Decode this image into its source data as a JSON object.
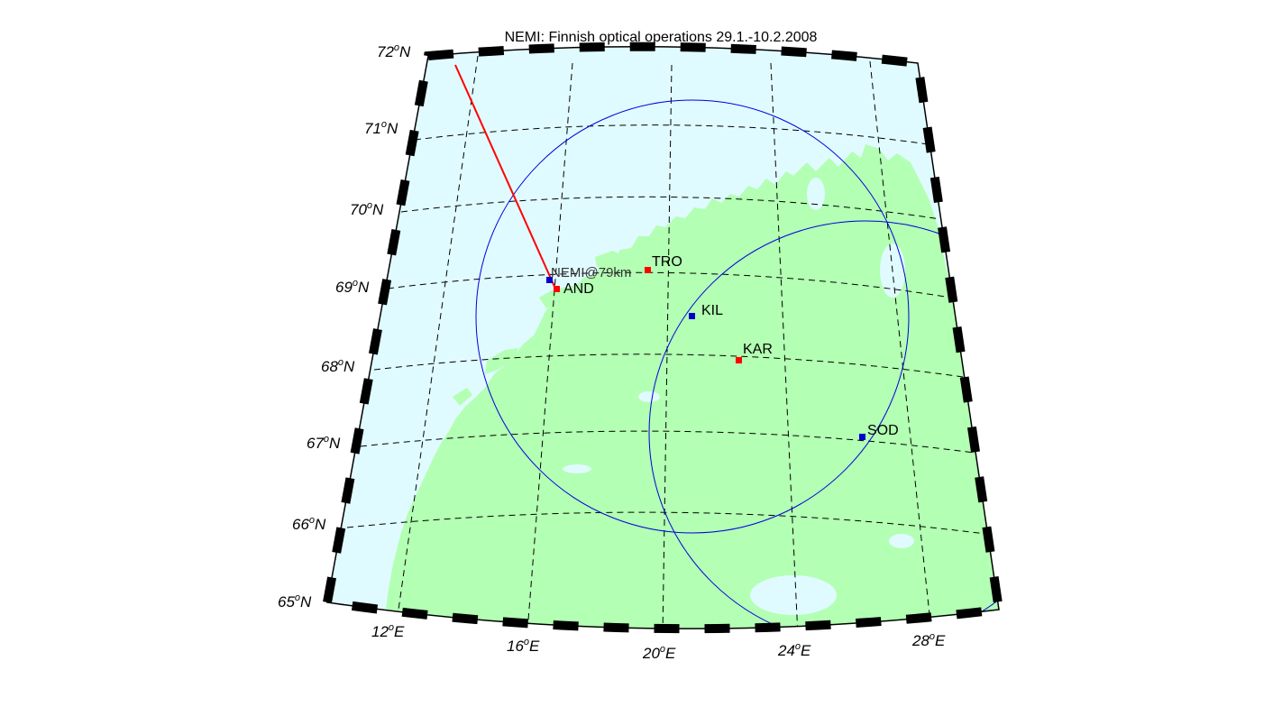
{
  "title": "NEMI: Finnish optical operations 29.1.-10.2.2008",
  "colors": {
    "sea": "#e0fbff",
    "land": "#b3ffb3",
    "grid": "#000000",
    "circle": "#0000dd",
    "track": "#ff0000",
    "red_station": "#ff0000",
    "blue_station": "#0000cc"
  },
  "lat_labels": [
    {
      "value": "72",
      "unit": "N"
    },
    {
      "value": "71",
      "unit": "N"
    },
    {
      "value": "70",
      "unit": "N"
    },
    {
      "value": "69",
      "unit": "N"
    },
    {
      "value": "68",
      "unit": "N"
    },
    {
      "value": "67",
      "unit": "N"
    },
    {
      "value": "66",
      "unit": "N"
    },
    {
      "value": "65",
      "unit": "N"
    }
  ],
  "lon_labels": [
    {
      "value": "12",
      "unit": "E"
    },
    {
      "value": "16",
      "unit": "E"
    },
    {
      "value": "20",
      "unit": "E"
    },
    {
      "value": "24",
      "unit": "E"
    },
    {
      "value": "28",
      "unit": "E"
    }
  ],
  "stations": [
    {
      "code": "TRO",
      "type": "red"
    },
    {
      "code": "AND",
      "type": "red"
    },
    {
      "code": "KIL",
      "type": "blue"
    },
    {
      "code": "KAR",
      "type": "red"
    },
    {
      "code": "SOD",
      "type": "blue"
    }
  ],
  "nemi": {
    "label": "NEMI@79km"
  }
}
